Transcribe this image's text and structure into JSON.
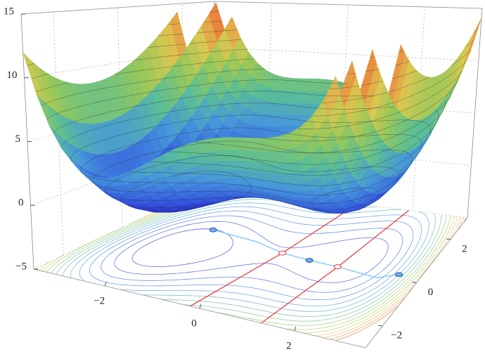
{
  "chart_data": {
    "type": "surface",
    "xlim": [
      -3.5,
      3.5
    ],
    "ylim": [
      -3,
      3
    ],
    "zlim": [
      -5,
      15
    ],
    "xticks": [
      {
        "value": -2,
        "label": "−2"
      },
      0,
      2
    ],
    "yticks": [
      {
        "value": -2,
        "label": "−2"
      },
      0,
      2
    ],
    "zticks": [
      {
        "value": -5,
        "label": "−5"
      },
      0,
      5,
      10,
      15
    ],
    "grid": true
  }
}
